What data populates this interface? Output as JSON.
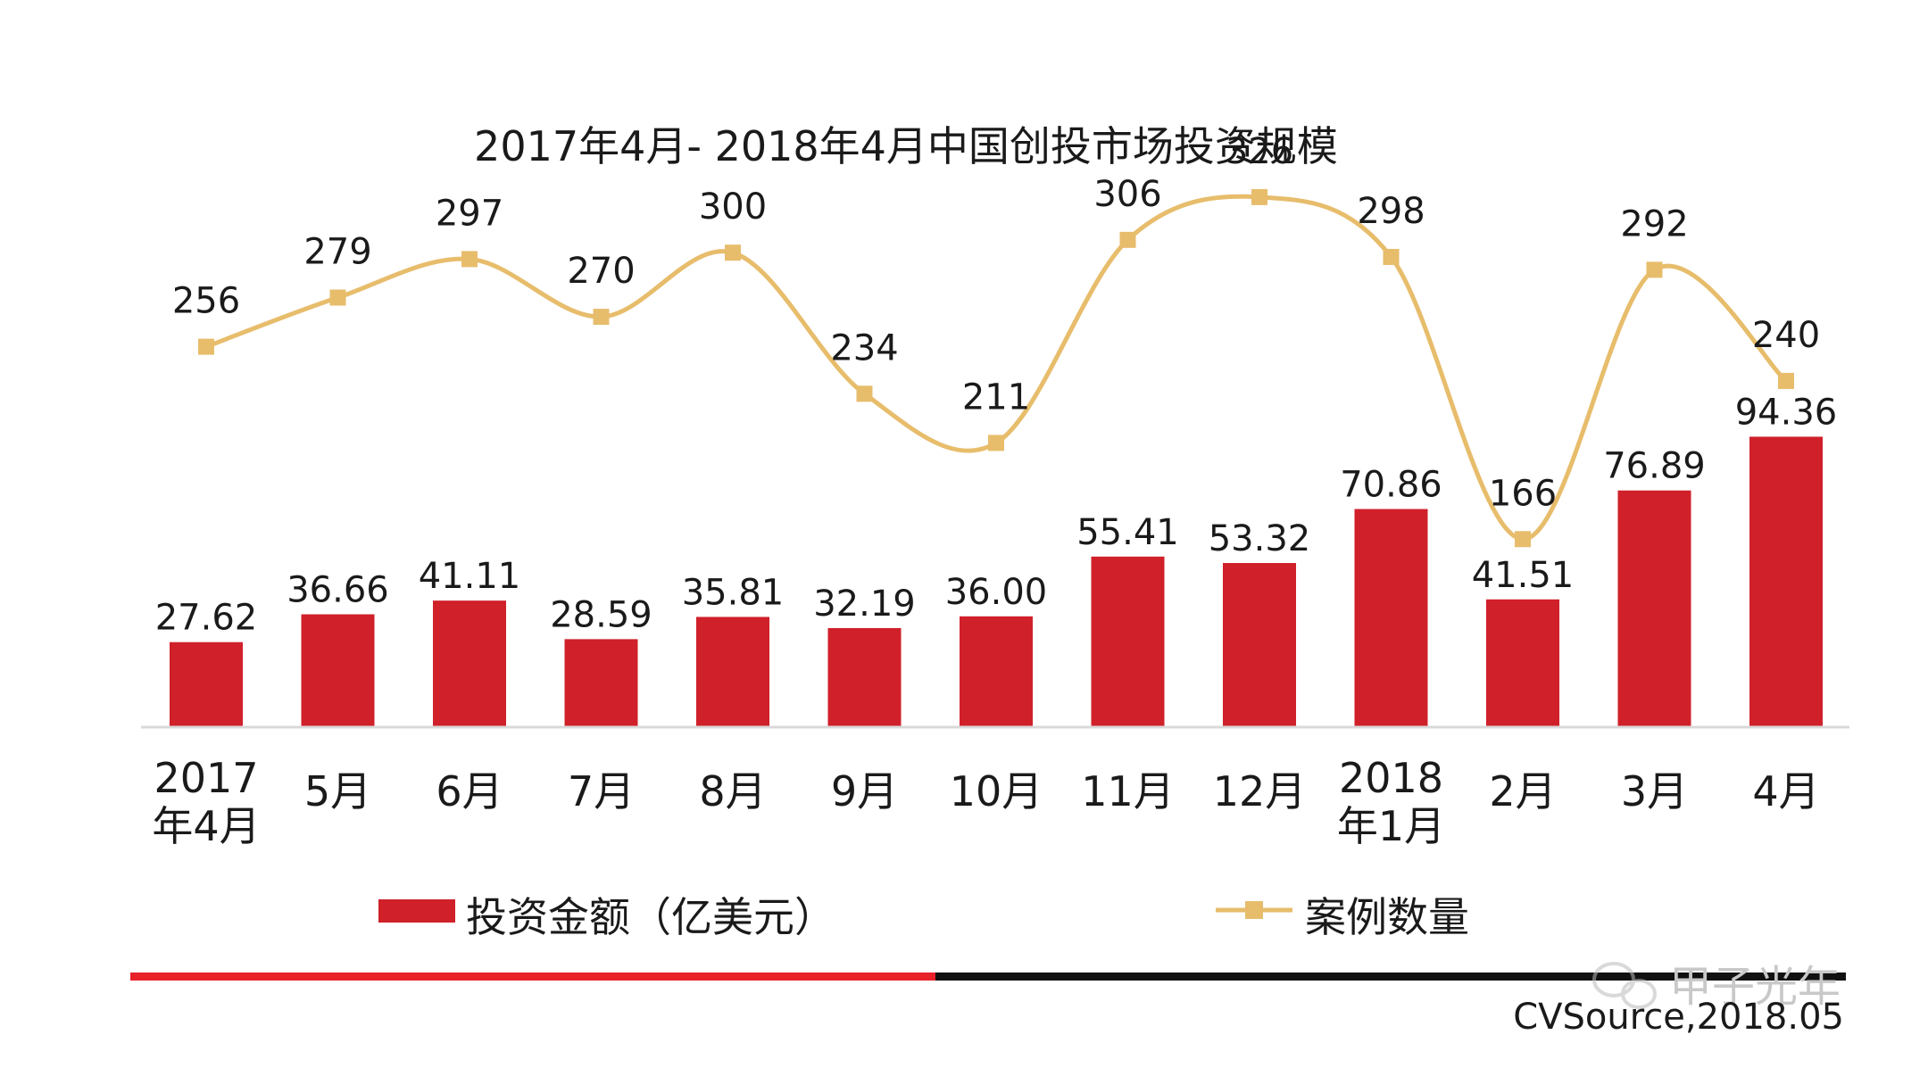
{
  "chart_data": {
    "type": "bar",
    "title": "2017年4月- 2018年4月中国创投市场投资规模",
    "categories": [
      [
        "2017",
        "年4月"
      ],
      [
        "5月"
      ],
      [
        "6月"
      ],
      [
        "7月"
      ],
      [
        "8月"
      ],
      [
        "9月"
      ],
      [
        "10月"
      ],
      [
        "11月"
      ],
      [
        "12月"
      ],
      [
        "2018",
        "年1月"
      ],
      [
        "2月"
      ],
      [
        "3月"
      ],
      [
        "4月"
      ]
    ],
    "series": [
      {
        "name": "投资金额（亿美元）",
        "type": "bar",
        "color": "#d0202a",
        "values": [
          27.62,
          36.66,
          41.11,
          28.59,
          35.81,
          32.19,
          36.0,
          55.41,
          53.32,
          70.86,
          41.51,
          76.89,
          94.36
        ],
        "labels": [
          "27.62",
          "36.66",
          "41.11",
          "28.59",
          "35.81",
          "32.19",
          "36.00",
          "55.41",
          "53.32",
          "70.86",
          "41.51",
          "76.89",
          "94.36"
        ]
      },
      {
        "name": "案例数量",
        "type": "line",
        "color": "#e7bd6c",
        "values": [
          256,
          279,
          297,
          270,
          300,
          234,
          211,
          306,
          326,
          298,
          166,
          292,
          240
        ]
      }
    ],
    "bar_ylim": [
      0,
      100
    ],
    "line_ylim": [
      0,
      330
    ],
    "xlabel": "",
    "ylabel": "",
    "grid": false,
    "legend_position": "bottom"
  },
  "source": "CVSource,2018.05",
  "watermark": "甲子光年",
  "footer_colors": {
    "left": "#e8202a",
    "right": "#111111"
  }
}
